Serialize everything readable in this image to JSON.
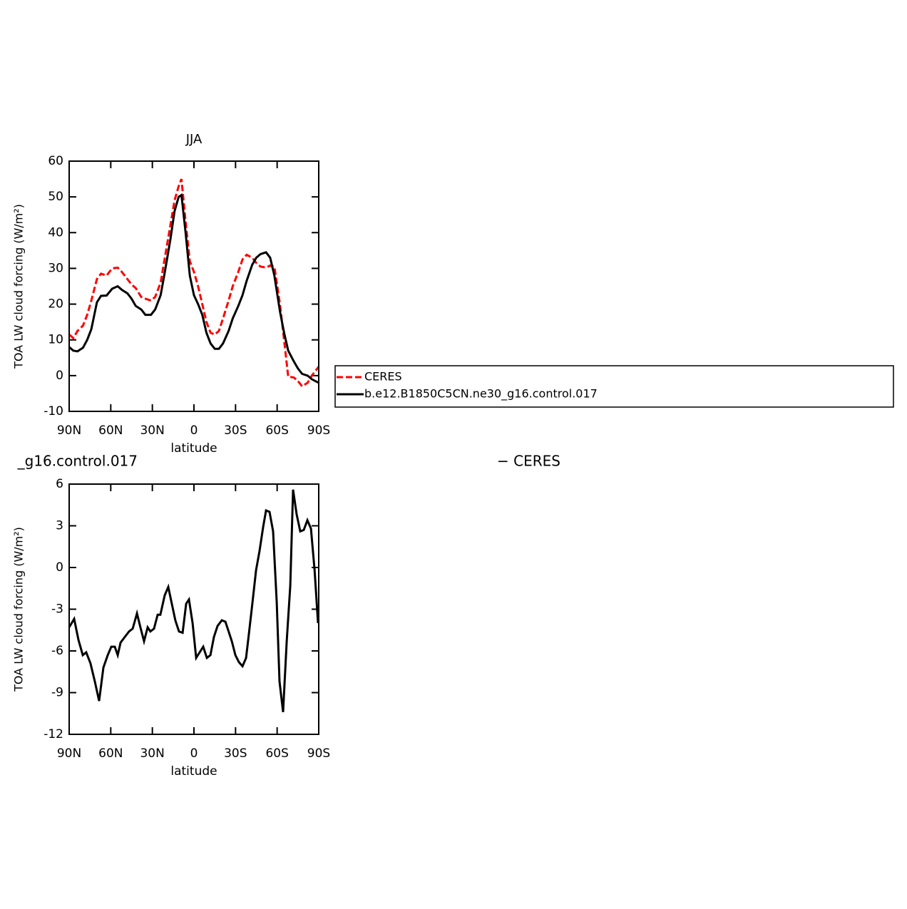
{
  "chart_data": [
    {
      "type": "line",
      "title": "JJA",
      "x_label": "latitude",
      "y_label": "TOA LW cloud forcing (W/m²)",
      "x": [
        90,
        87,
        84,
        80,
        77,
        74,
        70,
        67,
        63,
        59,
        55,
        52,
        48,
        45,
        42,
        38,
        35,
        31,
        28,
        24,
        21,
        17,
        14,
        11,
        9,
        6,
        3,
        0,
        -3,
        -6,
        -9,
        -12,
        -15,
        -18,
        -21,
        -25,
        -28,
        -32,
        -35,
        -38,
        -42,
        -45,
        -48,
        -52,
        -55,
        -58,
        -62,
        -65,
        -68,
        -72,
        -75,
        -78,
        -82,
        -85,
        -90
      ],
      "series": [
        {
          "name": "CERES",
          "color": "#ff0000",
          "dash": true,
          "values": [
            11.5,
            10.5,
            12.5,
            14,
            17,
            21,
            27,
            28.5,
            28,
            30,
            30.2,
            29,
            27,
            25.5,
            24.5,
            22,
            21.5,
            21,
            22,
            26,
            33,
            42,
            49,
            53,
            55,
            43,
            32,
            29,
            25,
            20,
            15,
            12,
            11.5,
            12.5,
            16,
            21,
            25,
            29,
            32.5,
            33.8,
            33,
            31.5,
            30.5,
            30.2,
            30.8,
            30.5,
            20,
            10,
            -0.3,
            -0.5,
            -1.5,
            -3,
            -2,
            0,
            2.5
          ]
        },
        {
          "name": "b.e12.B1850C5CN.ne30_g16.control.017",
          "color": "#000000",
          "dash": false,
          "values": [
            8,
            7,
            6.8,
            7.8,
            10,
            13,
            20.5,
            22.3,
            22.4,
            24.3,
            25,
            24,
            23,
            21.5,
            19.5,
            18.5,
            17,
            17,
            18.5,
            22.5,
            29,
            38,
            46,
            50,
            50.5,
            40,
            28,
            22.5,
            20,
            17,
            12,
            9,
            7.5,
            7.5,
            9,
            12.5,
            16,
            19.5,
            22.5,
            26.5,
            31,
            33,
            34,
            34.5,
            33,
            28,
            18,
            12,
            7,
            4,
            2,
            0.5,
            0,
            -1,
            -2
          ]
        }
      ],
      "xlim": [
        90,
        -90
      ],
      "xticks": [
        {
          "value": 90,
          "label": "90N"
        },
        {
          "value": 60,
          "label": "60N"
        },
        {
          "value": 30,
          "label": "30N"
        },
        0,
        {
          "value": -30,
          "label": "30S"
        },
        {
          "value": -60,
          "label": "60S"
        },
        {
          "value": -90,
          "label": "90S"
        }
      ],
      "ylim": [
        -10,
        60
      ],
      "yticks": [
        -10,
        0,
        10,
        20,
        30,
        40,
        50,
        60
      ],
      "legend": "right"
    },
    {
      "type": "line",
      "title_left": "_g16.control.017",
      "title_right": "− CERES",
      "x_label": "latitude",
      "y_label": "TOA LW cloud forcing (W/m²)",
      "x": [
        90,
        86.4,
        83.3,
        80.2,
        77.7,
        74.6,
        71.5,
        68.4,
        65.3,
        62.2,
        59.6,
        57.1,
        55,
        52.9,
        49.9,
        46.8,
        44.2,
        41.1,
        38.6,
        36,
        33.4,
        31.4,
        28.8,
        26.2,
        24.2,
        21.1,
        18.5,
        16.4,
        13.4,
        10.8,
        8.2,
        5.6,
        3.6,
        1,
        -1.6,
        -4.1,
        -6.7,
        -9.3,
        -11.9,
        -14.4,
        -17,
        -20.1,
        -22.7,
        -24.7,
        -27.3,
        -29.9,
        -32.4,
        -35,
        -37.6,
        -39.6,
        -42.2,
        -44.8,
        -47.3,
        -49.9,
        -52,
        -54.5,
        -57.1,
        -59.7,
        -61.7,
        -64.3,
        -66.9,
        -69.5,
        -71.5,
        -74.1,
        -76.7,
        -79.2,
        -81.8,
        -84.4,
        -87,
        -89.5
      ],
      "series": [
        {
          "name": null,
          "color": "#000000",
          "dash": false,
          "values": [
            -4.3,
            -3.7,
            -5.2,
            -6.3,
            -6.1,
            -6.9,
            -8.2,
            -9.6,
            -7.2,
            -6.3,
            -5.7,
            -5.7,
            -6.3,
            -5.4,
            -5,
            -4.6,
            -4.4,
            -3.3,
            -4.3,
            -5.3,
            -4.3,
            -4.6,
            -4.4,
            -3.4,
            -3.4,
            -2,
            -1.4,
            -2.4,
            -3.8,
            -4.6,
            -4.7,
            -2.6,
            -2.3,
            -4,
            -6.5,
            -6.1,
            -5.7,
            -6.5,
            -6.3,
            -5,
            -4.2,
            -3.8,
            -3.9,
            -4.5,
            -5.3,
            -6.3,
            -6.8,
            -7.1,
            -6.5,
            -4.8,
            -2.5,
            -0.2,
            1.2,
            2.9,
            4.1,
            4,
            2.6,
            -2.5,
            -8.2,
            -10.4,
            -5.3,
            -1.3,
            5.6,
            3.8,
            2.6,
            2.7,
            3.4,
            2.8,
            -0.2,
            -4
          ]
        }
      ],
      "xlim": [
        90,
        -90
      ],
      "xticks": [
        {
          "value": 90,
          "label": "90N"
        },
        {
          "value": 60,
          "label": "60N"
        },
        {
          "value": 30,
          "label": "30N"
        },
        0,
        {
          "value": -30,
          "label": "30S"
        },
        {
          "value": -60,
          "label": "60S"
        },
        {
          "value": -90,
          "label": "90S"
        }
      ],
      "ylim": [
        -12,
        6
      ],
      "yticks": [
        -12,
        -9,
        -6,
        -3,
        0,
        3,
        6
      ]
    }
  ]
}
